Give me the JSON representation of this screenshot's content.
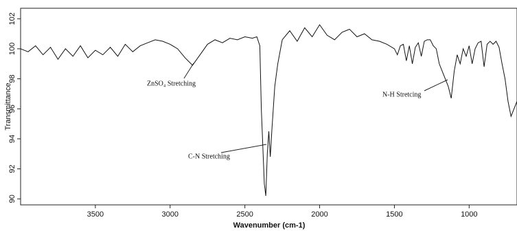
{
  "chart_data": {
    "type": "line",
    "x_label": "Wavenumber (cm-1)",
    "y_label": "Transmittance",
    "xlim": [
      4000,
      680
    ],
    "ylim": [
      89.6,
      102.7
    ],
    "xticks": [
      3500,
      3000,
      2500,
      2000,
      1500,
      1000
    ],
    "yticks": [
      90,
      92,
      94,
      96,
      98,
      100,
      102
    ],
    "annotations": [
      "ZnSO₄ Stretching",
      "C-N Stretching",
      "N-H Stretcing"
    ],
    "x": [
      4000,
      3950,
      3900,
      3850,
      3800,
      3750,
      3700,
      3650,
      3600,
      3550,
      3500,
      3450,
      3400,
      3350,
      3300,
      3250,
      3200,
      3150,
      3100,
      3050,
      3000,
      2950,
      2900,
      2850,
      2800,
      2750,
      2700,
      2650,
      2600,
      2550,
      2500,
      2450,
      2420,
      2400,
      2390,
      2380,
      2370,
      2360,
      2350,
      2340,
      2330,
      2320,
      2310,
      2300,
      2280,
      2250,
      2200,
      2150,
      2100,
      2050,
      2000,
      1950,
      1900,
      1850,
      1800,
      1750,
      1700,
      1650,
      1600,
      1550,
      1500,
      1480,
      1460,
      1440,
      1420,
      1400,
      1380,
      1360,
      1340,
      1320,
      1300,
      1280,
      1260,
      1240,
      1220,
      1200,
      1180,
      1160,
      1140,
      1120,
      1100,
      1080,
      1060,
      1040,
      1020,
      1000,
      980,
      960,
      940,
      920,
      900,
      880,
      860,
      840,
      820,
      800,
      780,
      760,
      740,
      720,
      700,
      680
    ],
    "series": [
      {
        "color": "#111111",
        "values": [
          100.0,
          99.8,
          100.2,
          99.6,
          100.1,
          99.3,
          100.0,
          99.5,
          100.2,
          99.4,
          99.9,
          99.6,
          100.1,
          99.5,
          100.3,
          99.8,
          100.2,
          100.4,
          100.6,
          100.5,
          100.3,
          100.0,
          99.4,
          98.9,
          99.6,
          100.3,
          100.6,
          100.4,
          100.7,
          100.6,
          100.8,
          100.7,
          100.8,
          100.2,
          96.0,
          93.5,
          91.0,
          90.2,
          93.0,
          94.5,
          92.8,
          94.5,
          96.0,
          97.5,
          99.0,
          100.6,
          101.2,
          100.5,
          101.4,
          100.8,
          101.6,
          100.9,
          100.6,
          101.1,
          101.3,
          100.8,
          101.0,
          100.6,
          100.5,
          100.3,
          100.0,
          99.6,
          100.2,
          100.3,
          99.2,
          100.2,
          99.0,
          100.1,
          100.4,
          99.5,
          100.5,
          100.6,
          100.6,
          100.2,
          100.0,
          99.0,
          98.5,
          98.0,
          97.5,
          96.7,
          98.5,
          99.6,
          99.0,
          100.0,
          99.5,
          100.2,
          99.0,
          100.0,
          100.4,
          100.5,
          98.8,
          100.3,
          100.5,
          100.3,
          100.5,
          100.1,
          99.0,
          98.0,
          96.5,
          95.5,
          96.0,
          96.5
        ]
      }
    ]
  }
}
